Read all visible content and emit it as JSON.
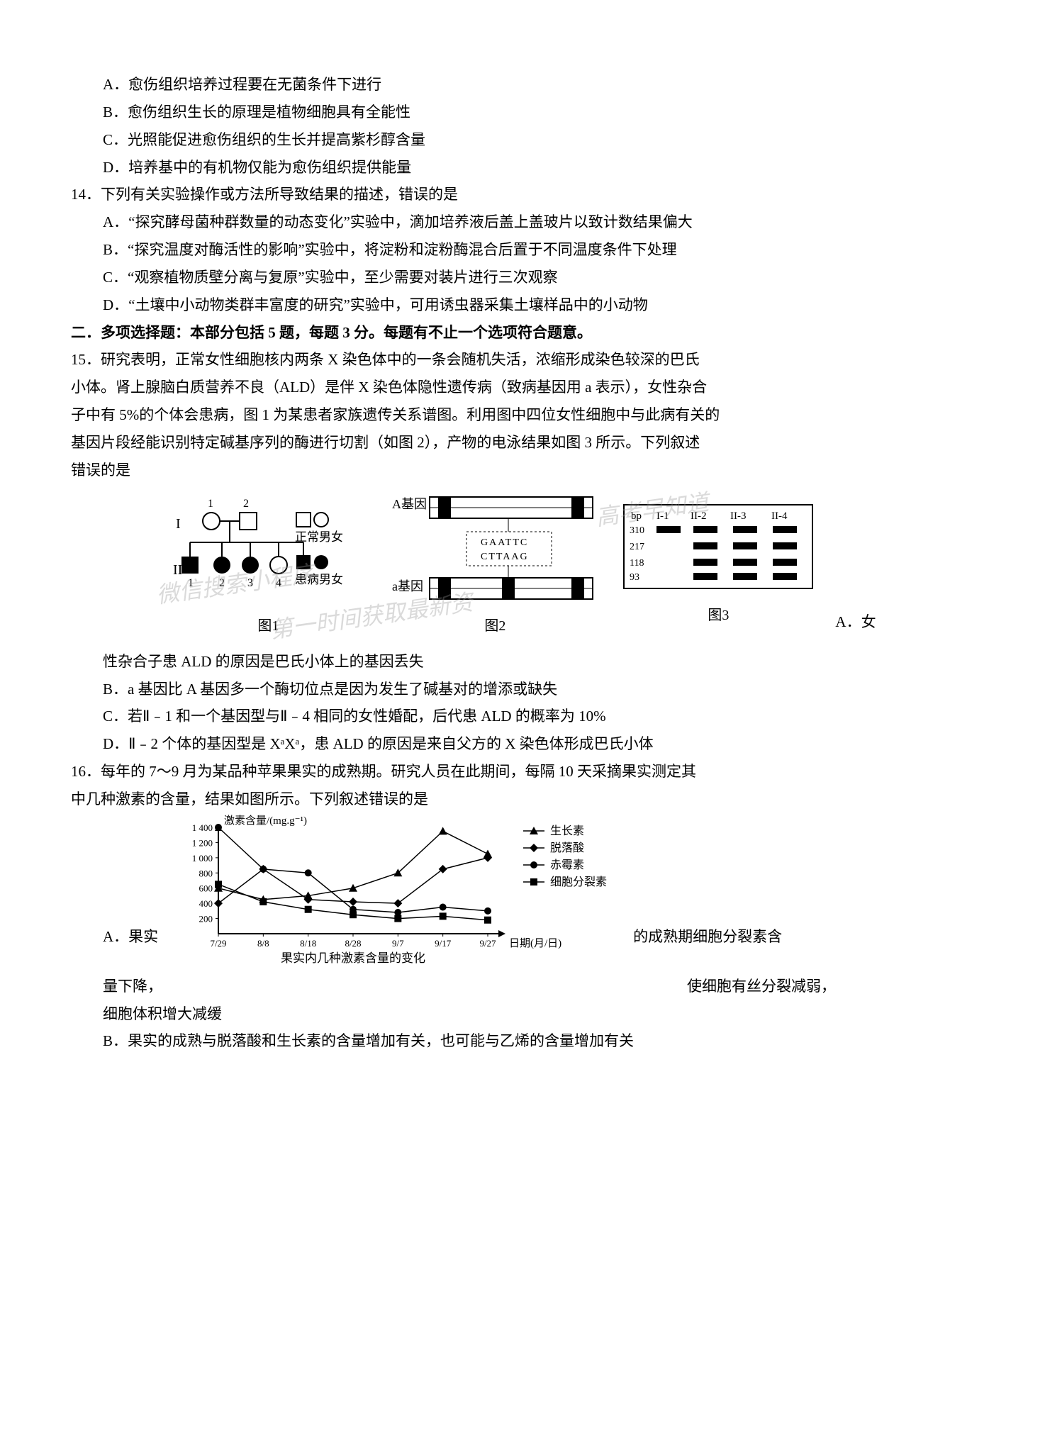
{
  "q13_options": {
    "a": "A．愈伤组织培养过程要在无菌条件下进行",
    "b": "B．愈伤组织生长的原理是植物细胞具有全能性",
    "c": "C．光照能促进愈伤组织的生长并提高紫杉醇含量",
    "d": "D．培养基中的有机物仅能为愈伤组织提供能量"
  },
  "q14": {
    "stem": "14．下列有关实验操作或方法所导致结果的描述，错误的是",
    "a": "A．“探究酵母菌种群数量的动态变化”实验中，滴加培养液后盖上盖玻片以致计数结果偏大",
    "b": "B．“探究温度对酶活性的影响”实验中，将淀粉和淀粉酶混合后置于不同温度条件下处理",
    "c": "C．“观察植物质壁分离与复原”实验中，至少需要对装片进行三次观察",
    "d": "D．“土壤中小动物类群丰富度的研究”实验中，可用诱虫器采集土壤样品中的小动物"
  },
  "section2": "二．多项选择题：本部分包括 5 题，每题 3 分。每题有不止一个选项符合题意。",
  "q15": {
    "stem1": "15．研究表明，正常女性细胞核内两条 X 染色体中的一条会随机失活，浓缩形成染色较深的巴氏",
    "stem2": "小体。肾上腺脑白质营养不良（ALD）是伴 X 染色体隐性遗传病（致病基因用 a 表示），女性杂合",
    "stem3": "子中有 5%的个体会患病，图 1 为某患者家族遗传关系谱图。利用图中四位女性细胞中与此病有关的",
    "stem4": "基因片段经能识别特定碱基序列的酶进行切割（如图 2），产物的电泳结果如图 3 所示。下列叙述",
    "stem5": "错误的是",
    "fig1": "图1",
    "fig2": "图2",
    "fig3": "图3",
    "legend1": "正常男女",
    "legend2": "患病男女",
    "gene_A": "A基因",
    "gene_a": "a基因",
    "seq1": "GAATTC",
    "seq2": "CTTAAG",
    "gel_header": [
      "bp",
      "I-1",
      "II-2",
      "II-3",
      "II-4"
    ],
    "gel_bands": [
      "310",
      "217",
      "118",
      "93"
    ],
    "a_pre": "A．女",
    "a": "性杂合子患 ALD 的原因是巴氏小体上的基因丢失",
    "b": "B．a 基因比 A 基因多一个酶切位点是因为发生了碱基对的增添或缺失",
    "c": "C．若Ⅱ﹣1 和一个基因型与Ⅱ﹣4 相同的女性婚配，后代患 ALD 的概率为 10%",
    "d": "D．Ⅱ﹣2 个体的基因型是 XᵃXᵃ，患 ALD 的原因是来自父方的 X 染色体形成巴氏小体"
  },
  "q16": {
    "stem1": "16．每年的 7～9 月为某品种苹果果实的成熟期。研究人员在此期间，每隔 10 天采摘果实测定其",
    "stem2": "中几种激素的含量，结果如图所示。下列叙述错误的是",
    "a_left": "A．果实",
    "a_right": "的成熟期细胞分裂素含",
    "a_line2_left": "量下降，",
    "a_line2_right": "使细胞有丝分裂减弱，",
    "a_line3": "细胞体积增大减缓",
    "b": "B．果实的成熟与脱落酸和生长素的含量增加有关，也可能与乙烯的含量增加有关",
    "chart": {
      "y_label": "激素含量/(mg.g⁻¹)",
      "x_label": "日期(月/日)",
      "caption": "果实内几种激素含量的变化",
      "y_ticks": [
        "1 400",
        "1 200",
        "1 000",
        "800",
        "600",
        "400",
        "200"
      ],
      "x_ticks": [
        "7/29",
        "8/8",
        "8/18",
        "8/28",
        "9/7",
        "9/17",
        "9/27"
      ],
      "legend": [
        "生长素",
        "脱落酸",
        "赤霉素",
        "细胞分裂素"
      ],
      "colors": {
        "axis": "#000000",
        "bg": "#ffffff"
      },
      "series": {
        "auxin": [
          600,
          450,
          500,
          600,
          800,
          1350,
          1050
        ],
        "aba": [
          400,
          850,
          450,
          420,
          400,
          850,
          1000
        ],
        "ga": [
          1400,
          850,
          800,
          320,
          280,
          350,
          300
        ],
        "cytokinin": [
          650,
          420,
          320,
          250,
          200,
          230,
          180
        ]
      }
    }
  },
  "watermarks": [
    "微信搜索小程序",
    "第一时间获取最新资",
    "高考早知道"
  ]
}
